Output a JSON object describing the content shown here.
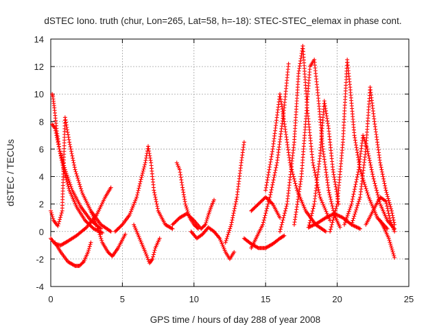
{
  "chart_data": {
    "type": "scatter",
    "title": "dSTEC Iono. truth (chur, Lon=265, Lat=58, h=-18): STEC-STEC_elemax in phase cont.",
    "xlabel": "GPS time / hours of day 288 of year 2008",
    "ylabel": "dSTEC  / TECUs",
    "xlim": [
      0,
      25
    ],
    "ylim": [
      -4,
      14
    ],
    "xticks": [
      0,
      5,
      10,
      15,
      20,
      25
    ],
    "yticks": [
      -4,
      -2,
      0,
      2,
      4,
      6,
      8,
      10,
      12,
      14
    ],
    "grid": true,
    "legend": "none",
    "marker": "+",
    "colors": {
      "points": "#ff0000",
      "grid": "#a0a0a0",
      "axis": "#000000"
    },
    "series": [
      {
        "x": [
          0.1,
          0.15,
          0.25,
          0.4,
          0.6,
          0.9,
          1.3,
          1.8,
          2.4,
          3.0,
          3.6
        ],
        "y": [
          10.0,
          9.8,
          9.0,
          7.5,
          6.0,
          4.5,
          3.0,
          1.8,
          0.8,
          0.2,
          -0.1
        ]
      },
      {
        "x": [
          0.1,
          0.3,
          0.6,
          1.0,
          1.5,
          2.1,
          2.8,
          3.5
        ],
        "y": [
          7.8,
          7.5,
          6.0,
          4.5,
          3.0,
          1.8,
          0.8,
          0.2
        ]
      },
      {
        "x": [
          0.0,
          0.2,
          0.5,
          0.8,
          1.0,
          1.3,
          1.7,
          2.2,
          2.8,
          3.5,
          4.2
        ],
        "y": [
          1.5,
          0.8,
          0.4,
          1.5,
          8.3,
          6.5,
          4.5,
          2.8,
          1.5,
          0.5,
          0.0
        ]
      },
      {
        "x": [
          0.3,
          0.7,
          1.2,
          1.7,
          2.0,
          2.3,
          2.6,
          2.8
        ],
        "y": [
          -0.8,
          -1.5,
          -2.2,
          -2.5,
          -2.5,
          -2.2,
          -1.5,
          -0.8
        ]
      },
      {
        "x": [
          0.0,
          0.3,
          0.7,
          1.2,
          1.8,
          2.5,
          3.2,
          3.8,
          4.2
        ],
        "y": [
          -0.5,
          -0.9,
          -1.0,
          -0.7,
          -0.3,
          0.3,
          1.2,
          2.5,
          3.2
        ]
      },
      {
        "x": [
          2.8,
          3.2,
          3.6,
          4.0,
          4.3,
          4.7,
          5.2
        ],
        "y": [
          1.5,
          0.5,
          -0.8,
          -1.5,
          -1.8,
          -1.2,
          -0.2
        ]
      },
      {
        "x": [
          4.5,
          5.0,
          5.5,
          6.0,
          6.3,
          6.6,
          6.8,
          7.0,
          7.2,
          7.5,
          8.0,
          8.5
        ],
        "y": [
          0.0,
          0.5,
          1.2,
          2.5,
          3.8,
          5.0,
          6.2,
          5.0,
          3.0,
          1.5,
          0.5,
          0.2
        ]
      },
      {
        "x": [
          5.8,
          6.2,
          6.6,
          6.9,
          7.1,
          7.3,
          7.6
        ],
        "y": [
          0.5,
          -0.5,
          -1.5,
          -2.3,
          -2.0,
          -1.2,
          -0.5
        ]
      },
      {
        "x": [
          8.8,
          9.0,
          9.2,
          9.4,
          9.7,
          10.0,
          10.3
        ],
        "y": [
          5.0,
          4.5,
          3.2,
          2.0,
          1.0,
          0.5,
          0.2
        ]
      },
      {
        "x": [
          8.5,
          9.0,
          9.5,
          10.0,
          10.5,
          10.8,
          11.0,
          11.2,
          11.4
        ],
        "y": [
          0.5,
          1.0,
          1.3,
          0.8,
          0.2,
          0.5,
          1.2,
          1.8,
          2.3
        ]
      },
      {
        "x": [
          9.8,
          10.2,
          10.6,
          11.0,
          11.4,
          11.8,
          12.2,
          12.5,
          12.8
        ],
        "y": [
          0.0,
          -0.5,
          -0.2,
          0.3,
          0.0,
          -0.5,
          -1.5,
          -2.0,
          -1.5
        ]
      },
      {
        "x": [
          12.2,
          12.6,
          13.0,
          13.3,
          13.5
        ],
        "y": [
          -0.8,
          0.5,
          2.5,
          5.0,
          6.5
        ]
      },
      {
        "x": [
          13.5,
          14.0,
          14.5,
          15.0,
          15.5,
          16.0,
          16.3
        ],
        "y": [
          -0.5,
          -0.9,
          -1.2,
          -1.2,
          -0.9,
          -0.5,
          -0.3
        ]
      },
      {
        "x": [
          14.0,
          14.8,
          15.3,
          15.8,
          16.3,
          16.6
        ],
        "y": [
          -1.2,
          0.5,
          2.5,
          5.0,
          9.0,
          12.2
        ]
      },
      {
        "x": [
          15.0,
          15.5,
          16.0,
          16.3,
          16.7,
          17.2,
          17.8,
          18.5,
          19.2
        ],
        "y": [
          3.0,
          6.0,
          10.0,
          8.0,
          5.0,
          3.0,
          1.5,
          0.5,
          0.0
        ]
      },
      {
        "x": [
          16.0,
          16.5,
          17.0,
          17.3,
          17.6,
          17.9,
          18.3,
          18.8,
          19.5
        ],
        "y": [
          0.0,
          2.0,
          6.5,
          11.5,
          13.5,
          9.0,
          5.0,
          2.5,
          0.8
        ]
      },
      {
        "x": [
          17.0,
          17.5,
          17.8,
          18.1,
          18.4,
          18.7,
          19.0,
          19.4,
          19.8,
          20.2
        ],
        "y": [
          0.5,
          4.0,
          8.0,
          12.0,
          12.5,
          9.5,
          6.0,
          3.0,
          1.2,
          0.3
        ]
      },
      {
        "x": [
          18.0,
          18.4,
          18.8,
          19.1,
          19.4,
          19.7,
          20.1
        ],
        "y": [
          0.3,
          2.0,
          5.5,
          9.5,
          7.5,
          4.5,
          2.0
        ]
      },
      {
        "x": [
          19.5,
          20.0,
          20.4,
          20.7,
          20.9,
          21.2,
          21.6,
          22.2,
          22.8,
          23.5
        ],
        "y": [
          0.0,
          2.0,
          6.5,
          12.5,
          10.5,
          7.0,
          4.5,
          2.5,
          1.0,
          0.2
        ]
      },
      {
        "x": [
          20.5,
          21.0,
          21.5,
          21.8,
          22.1,
          22.5,
          23.0,
          23.5,
          24.0
        ],
        "y": [
          0.5,
          2.0,
          4.5,
          7.0,
          6.0,
          4.0,
          2.0,
          0.8,
          0.2
        ]
      },
      {
        "x": [
          21.0,
          21.6,
          22.0,
          22.3,
          22.6,
          23.0,
          23.4,
          23.8,
          24.0
        ],
        "y": [
          0.5,
          2.5,
          6.0,
          10.5,
          8.0,
          5.0,
          3.0,
          1.5,
          0.5
        ]
      },
      {
        "x": [
          22.0,
          22.5,
          23.0,
          23.4,
          23.7,
          24.0
        ],
        "y": [
          0.5,
          1.5,
          2.5,
          2.2,
          0.8,
          0.0
        ]
      },
      {
        "x": [
          23.0,
          23.3,
          23.6,
          23.8,
          24.0
        ],
        "y": [
          0.8,
          0.2,
          -0.5,
          -1.2,
          -1.9
        ]
      },
      {
        "x": [
          18.0,
          18.6,
          19.2,
          19.8,
          20.4,
          21.0,
          21.6
        ],
        "y": [
          0.3,
          0.6,
          1.0,
          1.3,
          1.0,
          0.5,
          0.2
        ]
      },
      {
        "x": [
          14.0,
          14.5,
          15.0,
          15.5,
          16.0
        ],
        "y": [
          1.5,
          2.0,
          2.5,
          2.0,
          1.0
        ]
      }
    ]
  }
}
